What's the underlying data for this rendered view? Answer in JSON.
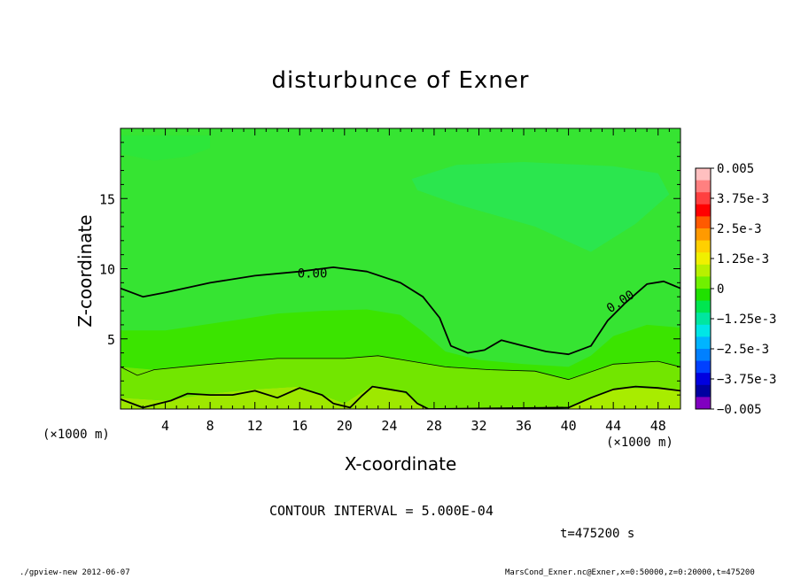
{
  "chart_data": {
    "type": "heatmap",
    "title": "disturbunce of Exner",
    "xlabel": "X-coordinate",
    "ylabel": "Z-coordinate",
    "x_unit": "(×1000 m)",
    "xlim": [
      0,
      50
    ],
    "ylim": [
      0,
      20
    ],
    "x_ticks": [
      "4",
      "8",
      "12",
      "16",
      "20",
      "24",
      "28",
      "32",
      "36",
      "40",
      "44",
      "48"
    ],
    "y_ticks": [
      "5",
      "10",
      "15"
    ],
    "contour_interval_text": "CONTOUR INTERVAL = 5.000E-04",
    "contour_labels": [
      "0.00",
      "0.00"
    ],
    "colorbar": {
      "range": [
        -0.005,
        0.005
      ],
      "labels": [
        "0.005",
        "3.75e-3",
        "2.5e-3",
        "1.25e-3",
        "0",
        "−1.25e-3",
        "−2.5e-3",
        "−3.75e-3",
        "−0.005"
      ],
      "label_values": [
        0.005,
        0.00375,
        0.0025,
        0.00125,
        0,
        -0.00125,
        -0.0025,
        -0.00375,
        -0.005
      ],
      "colors_top_to_bottom": [
        "#ffc0c0",
        "#ff8080",
        "#ff4040",
        "#ff0000",
        "#ff5a00",
        "#ff9a00",
        "#ffd000",
        "#f0f000",
        "#b8f000",
        "#70f000",
        "#20e000",
        "#00e650",
        "#00e6a0",
        "#00e6e6",
        "#00b4ff",
        "#0080ff",
        "#0040ff",
        "#0000e0",
        "#0000a0",
        "#8000c0"
      ]
    },
    "zero_contour_upper": [
      [
        0,
        8.6
      ],
      [
        2,
        8.0
      ],
      [
        4,
        8.3
      ],
      [
        8,
        9.0
      ],
      [
        12,
        9.5
      ],
      [
        16,
        9.8
      ],
      [
        19,
        10.1
      ],
      [
        22,
        9.8
      ],
      [
        25,
        9.0
      ],
      [
        27,
        8.0
      ],
      [
        28.5,
        6.5
      ],
      [
        29.5,
        4.5
      ],
      [
        31,
        4.0
      ],
      [
        32.5,
        4.2
      ],
      [
        34,
        4.9
      ],
      [
        35.5,
        4.6
      ],
      [
        38,
        4.1
      ],
      [
        40,
        3.9
      ],
      [
        42,
        4.5
      ],
      [
        43.5,
        6.3
      ],
      [
        45,
        7.5
      ],
      [
        47,
        8.9
      ],
      [
        48.5,
        9.1
      ],
      [
        50,
        8.6
      ]
    ],
    "zero_contour_lower": [
      [
        0,
        0.7
      ],
      [
        2,
        0.1
      ],
      [
        4.5,
        0.6
      ],
      [
        6,
        1.1
      ],
      [
        8,
        1.0
      ],
      [
        10,
        1.0
      ],
      [
        12,
        1.3
      ],
      [
        14,
        0.8
      ],
      [
        16,
        1.5
      ],
      [
        18,
        1.0
      ],
      [
        19,
        0.4
      ],
      [
        20.5,
        0.1
      ],
      [
        21.5,
        0.9
      ],
      [
        22.5,
        1.6
      ],
      [
        24,
        1.4
      ],
      [
        25.5,
        1.2
      ],
      [
        26.5,
        0.4
      ],
      [
        27.5,
        0.0
      ],
      [
        40,
        0.1
      ],
      [
        42,
        0.8
      ],
      [
        44,
        1.4
      ],
      [
        46,
        1.6
      ],
      [
        48,
        1.5
      ],
      [
        50,
        1.3
      ]
    ],
    "thin_contour": [
      [
        0,
        3.0
      ],
      [
        1.5,
        2.4
      ],
      [
        3,
        2.8
      ],
      [
        8,
        3.2
      ],
      [
        14,
        3.6
      ],
      [
        20,
        3.6
      ],
      [
        23,
        3.8
      ],
      [
        26,
        3.4
      ],
      [
        29,
        3.0
      ],
      [
        33,
        2.8
      ],
      [
        37,
        2.7
      ],
      [
        40,
        2.1
      ],
      [
        44,
        3.2
      ],
      [
        48,
        3.4
      ],
      [
        50,
        3.0
      ]
    ],
    "fields": [
      {
        "color": "#9ee800",
        "poly": [
          [
            0,
            0.8
          ],
          [
            4,
            0.6
          ],
          [
            8,
            1.1
          ],
          [
            12,
            1.4
          ],
          [
            16,
            1.6
          ],
          [
            20,
            0.4
          ],
          [
            22.5,
            1.7
          ],
          [
            25,
            1.3
          ],
          [
            27.5,
            0
          ],
          [
            0,
            0
          ]
        ]
      },
      {
        "color": "#a8ec00",
        "poly": [
          [
            40,
            0.1
          ],
          [
            44,
            1.5
          ],
          [
            48,
            1.6
          ],
          [
            50,
            1.4
          ],
          [
            50,
            0
          ],
          [
            40,
            0
          ]
        ]
      },
      {
        "color": "#72e600",
        "poly": [
          [
            0,
            3.0
          ],
          [
            3,
            2.8
          ],
          [
            8,
            3.2
          ],
          [
            14,
            3.6
          ],
          [
            20,
            3.6
          ],
          [
            23,
            3.8
          ],
          [
            26,
            3.4
          ],
          [
            29,
            3.0
          ],
          [
            33,
            2.8
          ],
          [
            37,
            2.7
          ],
          [
            40,
            2.1
          ],
          [
            44,
            3.2
          ],
          [
            48,
            3.4
          ],
          [
            50,
            3.0
          ],
          [
            50,
            1.4
          ],
          [
            44,
            1.5
          ],
          [
            40,
            0.1
          ],
          [
            27.5,
            0
          ],
          [
            25,
            1.3
          ],
          [
            22.5,
            1.7
          ],
          [
            20,
            0.4
          ],
          [
            16,
            1.6
          ],
          [
            12,
            1.4
          ],
          [
            8,
            1.1
          ],
          [
            4,
            0.6
          ],
          [
            0,
            0.8
          ]
        ]
      },
      {
        "color": "#3be400",
        "poly": [
          [
            0,
            5.6
          ],
          [
            4,
            5.6
          ],
          [
            10,
            6.3
          ],
          [
            14,
            6.8
          ],
          [
            18,
            7.0
          ],
          [
            22,
            7.1
          ],
          [
            25,
            6.7
          ],
          [
            27,
            5.5
          ],
          [
            29,
            4.1
          ],
          [
            32,
            3.5
          ],
          [
            36,
            3.2
          ],
          [
            40,
            3.0
          ],
          [
            42,
            3.8
          ],
          [
            44,
            5.2
          ],
          [
            47,
            6.0
          ],
          [
            50,
            5.8
          ],
          [
            50,
            3.0
          ],
          [
            48,
            3.4
          ],
          [
            44,
            3.2
          ],
          [
            40,
            2.1
          ],
          [
            37,
            2.7
          ],
          [
            33,
            2.8
          ],
          [
            29,
            3.0
          ],
          [
            26,
            3.4
          ],
          [
            23,
            3.8
          ],
          [
            20,
            3.6
          ],
          [
            14,
            3.6
          ],
          [
            8,
            3.2
          ],
          [
            3,
            2.8
          ],
          [
            0,
            3.0
          ]
        ]
      },
      {
        "color": "#2de63a",
        "poly": [
          [
            0,
            18.2
          ],
          [
            3,
            17.7
          ],
          [
            6,
            18.0
          ],
          [
            8,
            18.6
          ],
          [
            8,
            19.5
          ],
          [
            0,
            19.5
          ]
        ]
      },
      {
        "color": "#2be64e",
        "poly": [
          [
            26,
            16.4
          ],
          [
            30,
            17.4
          ],
          [
            36,
            17.6
          ],
          [
            44,
            17.3
          ],
          [
            48,
            16.8
          ],
          [
            49,
            15.3
          ],
          [
            46,
            13.2
          ],
          [
            42,
            11.2
          ],
          [
            37,
            13.0
          ],
          [
            30,
            14.6
          ],
          [
            26.5,
            15.6
          ]
        ]
      }
    ]
  },
  "footer": {
    "left": "./gpview-new  2012-06-07",
    "right": "MarsCond_Exner.nc@Exner,x=0:50000,z=0:20000,t=475200",
    "time": "t=475200 s"
  }
}
